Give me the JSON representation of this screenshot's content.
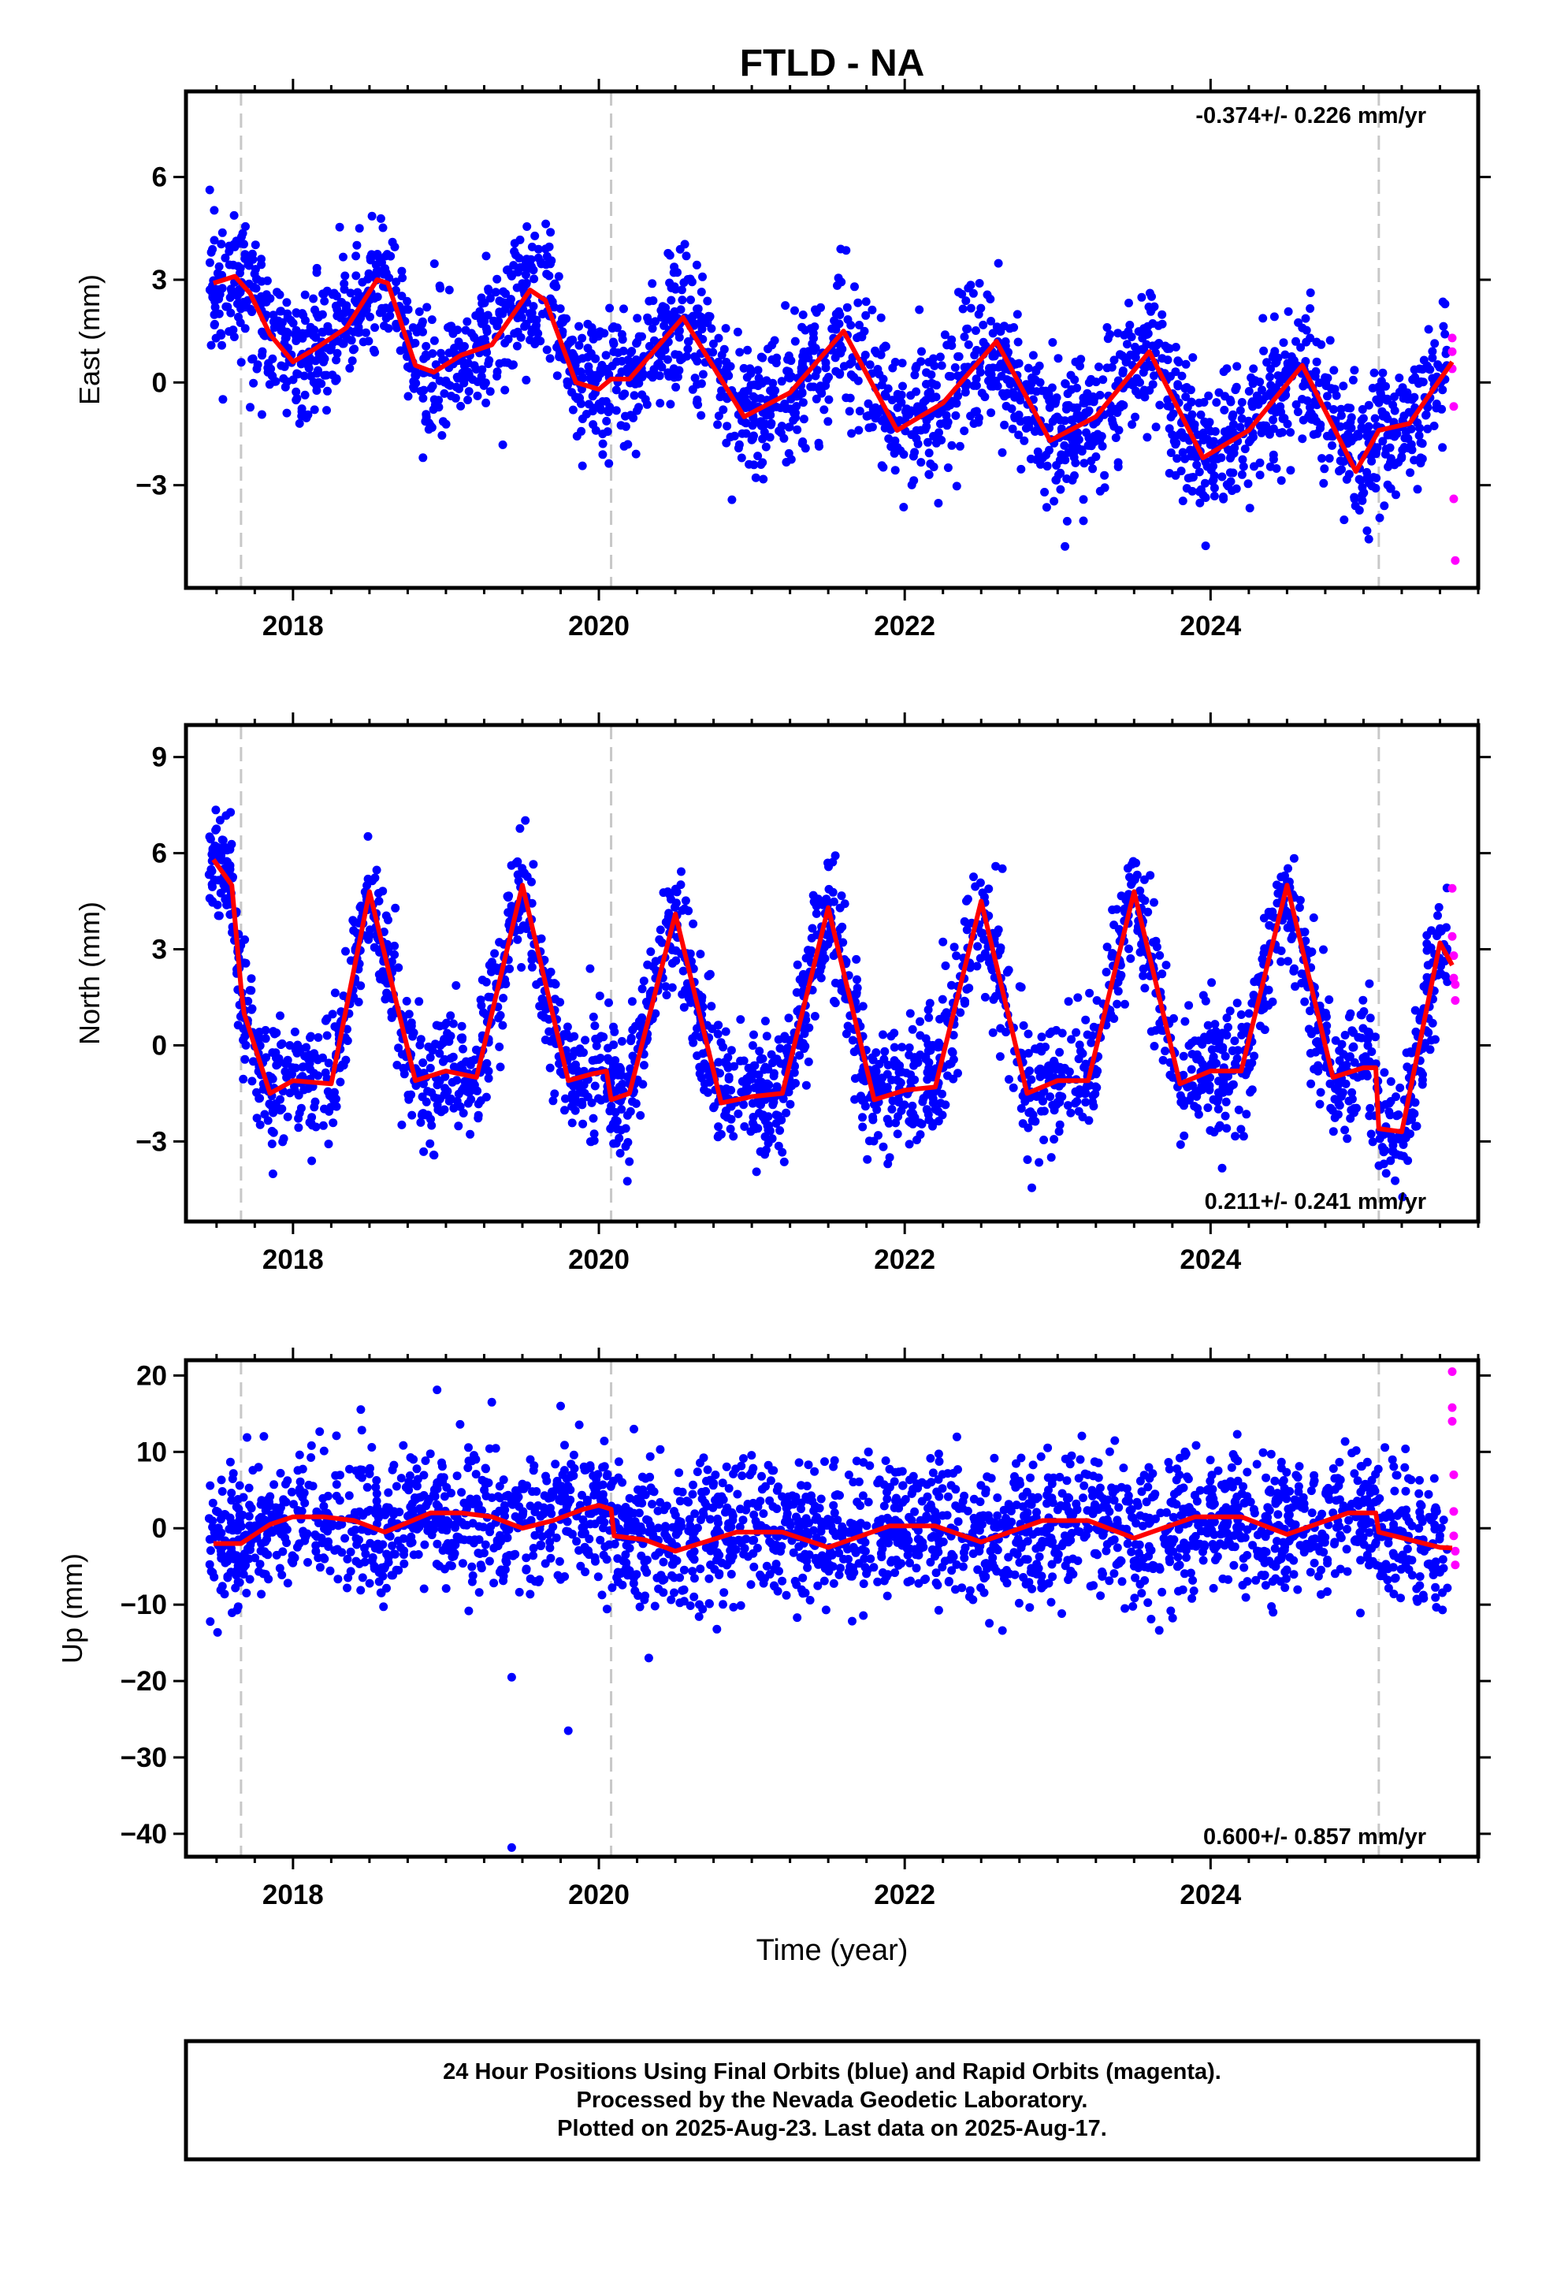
{
  "title": "FTLD - NA",
  "x_axis_label": "Time (year)",
  "footer": {
    "line1": "24 Hour Positions Using Final Orbits (blue) and Rapid Orbits (magenta).",
    "line2": "Processed by the Nevada Geodetic Laboratory.",
    "line3": "Plotted on 2025-Aug-23. Last data on 2025-Aug-17."
  },
  "colors": {
    "final_orbits": "#0000ff",
    "rapid_orbits": "#ff00ff",
    "model_fit": "#ff0000",
    "equipment_change_lines": "#c8c8c8"
  },
  "chart_data": [
    {
      "type": "scatter",
      "ylabel": "East (mm)",
      "xlim": [
        2017.3,
        2025.75
      ],
      "ylim": [
        -6.0,
        8.5
      ],
      "xticks": [
        2018,
        2020,
        2022,
        2024
      ],
      "yticks": [
        -3,
        0,
        3,
        6
      ],
      "rate_label": "-0.374+/- 0.226 mm/yr",
      "rate_position": "top-right",
      "trend_mm_per_yr": -0.374,
      "annual_amplitude": 1.4,
      "annual_peak_month": 8,
      "scatter_sd": 1.0,
      "offset_epochs": [
        2017.66,
        2020.08,
        2025.1
      ],
      "series": [
        {
          "role": "final_orbits",
          "x_range": [
            2017.45,
            2025.55
          ],
          "count": 2450
        },
        {
          "role": "rapid_orbits",
          "x": [
            2025.58,
            2025.58,
            2025.58,
            2025.59,
            2025.59,
            2025.6
          ],
          "y": [
            1.3,
            0.9,
            0.4,
            -0.7,
            -3.4,
            -5.2
          ]
        },
        {
          "role": "model_fit",
          "x": [
            2017.48,
            2017.62,
            2017.72,
            2017.85,
            2018.0,
            2018.15,
            2018.35,
            2018.55,
            2018.62,
            2018.8,
            2018.92,
            2019.1,
            2019.3,
            2019.55,
            2019.65,
            2019.85,
            2020.0,
            2020.08,
            2020.2,
            2020.55,
            2020.95,
            2021.25,
            2021.6,
            2021.95,
            2022.25,
            2022.6,
            2022.95,
            2023.25,
            2023.6,
            2023.95,
            2024.25,
            2024.6,
            2024.95,
            2025.1,
            2025.3,
            2025.58
          ],
          "y": [
            2.9,
            3.1,
            2.6,
            1.4,
            0.6,
            1.0,
            1.6,
            3.0,
            2.9,
            0.5,
            0.3,
            0.8,
            1.1,
            2.7,
            2.4,
            0.0,
            -0.2,
            0.1,
            0.1,
            1.9,
            -1.0,
            -0.3,
            1.5,
            -1.4,
            -0.6,
            1.2,
            -1.7,
            -1.0,
            0.9,
            -2.2,
            -1.4,
            0.5,
            -2.6,
            -1.4,
            -1.2,
            0.6
          ]
        }
      ]
    },
    {
      "type": "scatter",
      "ylabel": "North (mm)",
      "xlim": [
        2017.3,
        2025.75
      ],
      "ylim": [
        -5.5,
        10.0
      ],
      "xticks": [
        2018,
        2020,
        2022,
        2024
      ],
      "yticks": [
        -3,
        0,
        3,
        6,
        9
      ],
      "rate_label": "0.211+/- 0.241 mm/yr",
      "rate_position": "bottom-right",
      "trend_mm_per_yr": 0.211,
      "annual_amplitude": 3.2,
      "annual_peak_month": 7,
      "scatter_sd": 1.0,
      "offset_epochs": [
        2017.66,
        2020.08,
        2025.1
      ],
      "series": [
        {
          "role": "final_orbits",
          "x_range": [
            2017.45,
            2025.55
          ],
          "count": 2450
        },
        {
          "role": "rapid_orbits",
          "x": [
            2025.58,
            2025.58,
            2025.59,
            2025.59,
            2025.6,
            2025.6
          ],
          "y": [
            4.9,
            3.4,
            2.8,
            2.1,
            1.9,
            1.4
          ]
        },
        {
          "role": "model_fit",
          "x": [
            2017.48,
            2017.6,
            2017.66,
            2017.68,
            2017.85,
            2018.0,
            2018.25,
            2018.5,
            2018.8,
            2019.0,
            2019.2,
            2019.5,
            2019.8,
            2019.95,
            2020.05,
            2020.08,
            2020.2,
            2020.5,
            2020.8,
            2021.0,
            2021.2,
            2021.5,
            2021.8,
            2022.0,
            2022.2,
            2022.5,
            2022.8,
            2023.0,
            2023.2,
            2023.5,
            2023.8,
            2024.0,
            2024.2,
            2024.5,
            2024.8,
            2025.0,
            2025.08,
            2025.1,
            2025.25,
            2025.5,
            2025.58
          ],
          "y": [
            5.8,
            5.0,
            1.8,
            1.0,
            -1.5,
            -1.1,
            -1.2,
            4.8,
            -1.1,
            -0.8,
            -1.0,
            5.0,
            -1.1,
            -0.9,
            -0.8,
            -1.7,
            -1.5,
            4.1,
            -1.8,
            -1.6,
            -1.5,
            4.3,
            -1.7,
            -1.4,
            -1.3,
            4.5,
            -1.5,
            -1.1,
            -1.1,
            4.8,
            -1.2,
            -0.8,
            -0.8,
            5.0,
            -1.0,
            -0.7,
            -0.7,
            -2.6,
            -2.7,
            3.2,
            2.5
          ]
        }
      ]
    },
    {
      "type": "scatter",
      "ylabel": "Up (mm)",
      "xlim": [
        2017.3,
        2025.75
      ],
      "ylim": [
        -43.0,
        22.0
      ],
      "xticks": [
        2018,
        2020,
        2022,
        2024
      ],
      "yticks": [
        -40,
        -30,
        -20,
        -10,
        0,
        10,
        20
      ],
      "rate_label": "0.600+/- 0.857 mm/yr",
      "rate_position": "bottom-right",
      "trend_mm_per_yr": 0.6,
      "annual_amplitude": 1.5,
      "annual_peak_month": 12,
      "scatter_sd": 4.5,
      "offset_epochs": [
        2017.66,
        2020.08,
        2025.1
      ],
      "series": [
        {
          "role": "final_orbits",
          "x_range": [
            2017.45,
            2025.55
          ],
          "count": 2450,
          "outliers": {
            "x": [
              2019.43,
              2019.43,
              2019.8,
              2019.3,
              2019.75
            ],
            "y": [
              -41.8,
              -19.5,
              -26.5,
              16.5,
              16.0
            ]
          }
        },
        {
          "role": "rapid_orbits",
          "x": [
            2025.58,
            2025.58,
            2025.58,
            2025.59,
            2025.59,
            2025.59,
            2025.6,
            2025.6
          ],
          "y": [
            20.5,
            15.8,
            14.0,
            7.0,
            2.2,
            -1.0,
            -3.0,
            -4.8
          ]
        },
        {
          "role": "model_fit",
          "x": [
            2017.48,
            2017.66,
            2017.85,
            2018.0,
            2018.2,
            2018.4,
            2018.6,
            2018.9,
            2019.1,
            2019.3,
            2019.5,
            2019.7,
            2019.9,
            2020.0,
            2020.08,
            2020.1,
            2020.3,
            2020.5,
            2020.9,
            2021.2,
            2021.5,
            2021.9,
            2022.2,
            2022.5,
            2022.9,
            2023.2,
            2023.5,
            2023.9,
            2024.2,
            2024.5,
            2024.9,
            2025.08,
            2025.1,
            2025.3,
            2025.5,
            2025.58
          ],
          "y": [
            -2.0,
            -2.0,
            0.5,
            1.5,
            1.5,
            1.0,
            -0.5,
            2.0,
            2.0,
            1.5,
            0.0,
            1.0,
            2.5,
            3.0,
            2.5,
            -1.0,
            -1.5,
            -3.0,
            -0.5,
            -0.5,
            -2.5,
            0.3,
            0.3,
            -1.8,
            1.0,
            1.0,
            -1.3,
            1.5,
            1.5,
            -0.8,
            2.0,
            2.0,
            -0.5,
            -1.5,
            -2.5,
            -2.6
          ]
        }
      ]
    }
  ]
}
